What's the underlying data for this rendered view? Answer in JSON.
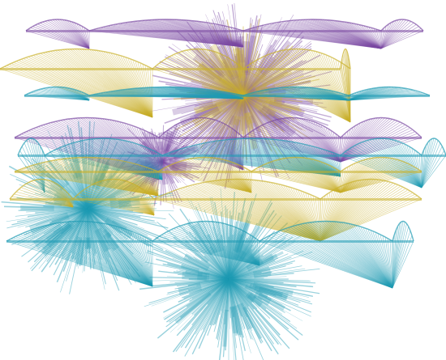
{
  "artwork": {
    "background": "#ffffff",
    "palette": {
      "purple": "#7b4aa3",
      "olive": "#c9b02a",
      "teal": "#1f9bb4"
    },
    "motifs": [
      "radial-fan-burst",
      "hanging-arc-fan-ribbon"
    ]
  }
}
